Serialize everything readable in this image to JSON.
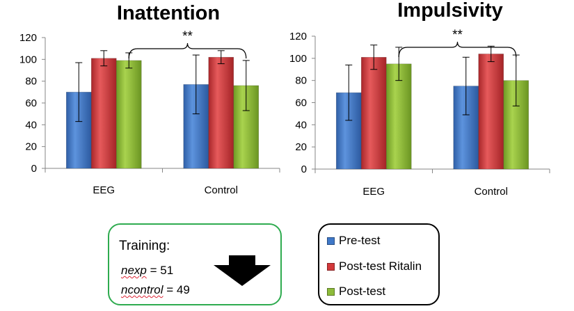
{
  "chart_data": [
    {
      "type": "bar",
      "title": "Inattention",
      "categories": [
        "EEG",
        "Control"
      ],
      "ylim": [
        0,
        120
      ],
      "yticks": [
        0,
        20,
        40,
        60,
        80,
        100,
        120
      ],
      "series": [
        {
          "name": "Pre-test",
          "values": [
            70,
            77
          ],
          "errors": [
            27,
            27
          ]
        },
        {
          "name": "Post-test Ritalin",
          "values": [
            101,
            102
          ],
          "errors": [
            7,
            6
          ]
        },
        {
          "name": "Post-test",
          "values": [
            99,
            76
          ],
          "errors": [
            7,
            23
          ]
        }
      ],
      "significance": "**",
      "grid": false
    },
    {
      "type": "bar",
      "title": "Impulsivity",
      "categories": [
        "EEG",
        "Control"
      ],
      "ylim": [
        0,
        120
      ],
      "yticks": [
        0,
        20,
        40,
        60,
        80,
        100,
        120
      ],
      "series": [
        {
          "name": "Pre-test",
          "values": [
            69,
            75
          ],
          "errors": [
            25,
            26
          ]
        },
        {
          "name": "Post-test Ritalin",
          "values": [
            101,
            104
          ],
          "errors": [
            11,
            7
          ]
        },
        {
          "name": "Post-test",
          "values": [
            95,
            80
          ],
          "errors": [
            15,
            23
          ]
        }
      ],
      "significance": "**",
      "grid": false
    }
  ],
  "colors": {
    "pre": "#3f78c8",
    "ritalin": "#d2383a",
    "post": "#8dbb3a"
  },
  "training": {
    "title": "Training:",
    "nexp_label": "nexp",
    "nexp_value": " = 51",
    "ncontrol_label": "ncontrol",
    "ncontrol_value": " = 49"
  },
  "legend": {
    "items": [
      "Pre-test",
      "Post-test Ritalin",
      "Post-test"
    ]
  }
}
